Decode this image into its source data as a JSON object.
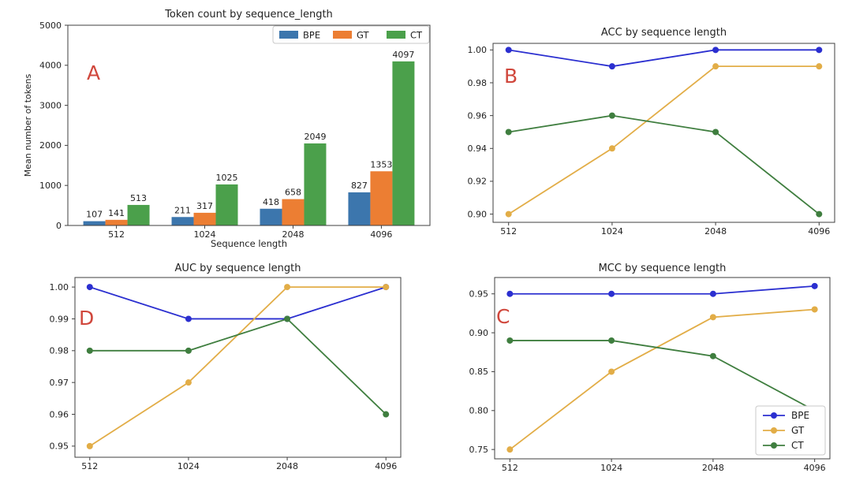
{
  "figure": {
    "background": "#ffffff",
    "panel_letter_color": "#d0473c",
    "spine_color": "#3f3f3f",
    "text_color": "#1f1f1f"
  },
  "chart_data": [
    {
      "panel": "A",
      "type": "bar",
      "title": "Token count by sequence_length",
      "xlabel": "Sequence length",
      "ylabel": "Mean number of tokens",
      "categories": [
        "512",
        "1024",
        "2048",
        "4096"
      ],
      "yticks": [
        0,
        1000,
        2000,
        3000,
        4000,
        5000
      ],
      "ytick_labels": [
        "0",
        "1000",
        "2000",
        "3000",
        "4000",
        "5000"
      ],
      "ylim": [
        0,
        5000
      ],
      "grid": false,
      "bar_value_labels": true,
      "legend": {
        "position": "top-right",
        "orientation": "horizontal",
        "labels": [
          "BPE",
          "GT",
          "CT"
        ]
      },
      "series": [
        {
          "name": "BPE",
          "color": "#3c76ad",
          "values": [
            107,
            211,
            418,
            827
          ]
        },
        {
          "name": "GT",
          "color": "#ec7e33",
          "values": [
            141,
            317,
            658,
            1353
          ]
        },
        {
          "name": "CT",
          "color": "#4ba04b",
          "values": [
            513,
            1025,
            2049,
            4097
          ]
        }
      ]
    },
    {
      "panel": "B",
      "type": "line",
      "title": "ACC by sequence length",
      "xlabel": "",
      "ylabel": "",
      "categories": [
        "512",
        "1024",
        "2048",
        "4096"
      ],
      "yticks": [
        0.9,
        0.92,
        0.94,
        0.96,
        0.98,
        1.0
      ],
      "ytick_labels": [
        "0.90",
        "0.92",
        "0.94",
        "0.96",
        "0.98",
        "1.00"
      ],
      "ylim": [
        0.895,
        1.004
      ],
      "grid": false,
      "legend": null,
      "series": [
        {
          "name": "BPE",
          "color": "#2b2fd0",
          "values": [
            1.0,
            0.99,
            1.0,
            1.0
          ]
        },
        {
          "name": "GT",
          "color": "#e2ad47",
          "values": [
            0.9,
            0.94,
            0.99,
            0.99
          ]
        },
        {
          "name": "CT",
          "color": "#3f7e3f",
          "values": [
            0.95,
            0.96,
            0.95,
            0.9
          ]
        }
      ]
    },
    {
      "panel": "D",
      "type": "line",
      "title": "AUC by sequence length",
      "xlabel": "",
      "ylabel": "",
      "categories": [
        "512",
        "1024",
        "2048",
        "4096"
      ],
      "yticks": [
        0.95,
        0.96,
        0.97,
        0.98,
        0.99,
        1.0
      ],
      "ytick_labels": [
        "0.95",
        "0.96",
        "0.97",
        "0.98",
        "0.99",
        "1.00"
      ],
      "ylim": [
        0.9465,
        1.003
      ],
      "grid": false,
      "legend": null,
      "series": [
        {
          "name": "BPE",
          "color": "#2b2fd0",
          "values": [
            1.0,
            0.99,
            0.99,
            1.0
          ]
        },
        {
          "name": "GT",
          "color": "#e2ad47",
          "values": [
            0.95,
            0.97,
            1.0,
            1.0
          ]
        },
        {
          "name": "CT",
          "color": "#3f7e3f",
          "values": [
            0.98,
            0.98,
            0.99,
            0.96
          ]
        }
      ]
    },
    {
      "panel": "C",
      "type": "line",
      "title": "MCC by sequence length",
      "xlabel": "",
      "ylabel": "",
      "categories": [
        "512",
        "1024",
        "2048",
        "4096"
      ],
      "yticks": [
        0.75,
        0.8,
        0.85,
        0.9,
        0.95
      ],
      "ytick_labels": [
        "0.75",
        "0.80",
        "0.85",
        "0.90",
        "0.95"
      ],
      "ylim": [
        0.738,
        0.971
      ],
      "grid": false,
      "legend": {
        "position": "bottom-right",
        "orientation": "vertical",
        "labels": [
          "BPE",
          "GT",
          "CT"
        ]
      },
      "series": [
        {
          "name": "BPE",
          "color": "#2b2fd0",
          "values": [
            0.95,
            0.95,
            0.95,
            0.96
          ]
        },
        {
          "name": "GT",
          "color": "#e2ad47",
          "values": [
            0.75,
            0.85,
            0.92,
            0.93
          ]
        },
        {
          "name": "CT",
          "color": "#3f7e3f",
          "values": [
            0.89,
            0.89,
            0.87,
            0.8
          ]
        }
      ]
    }
  ]
}
